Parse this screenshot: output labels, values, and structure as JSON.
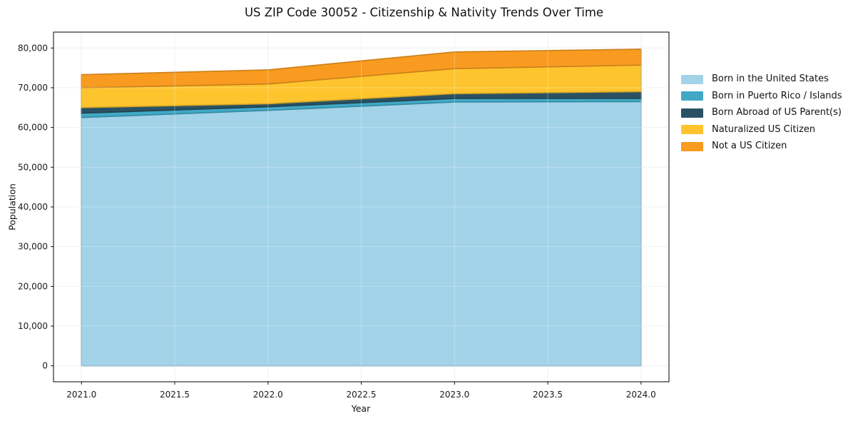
{
  "chart_data": {
    "type": "area",
    "stacked": true,
    "title": "US ZIP Code 30052 - Citizenship & Nativity Trends Over Time",
    "xlabel": "Year",
    "ylabel": "Population",
    "x": [
      2021,
      2022,
      2023,
      2024
    ],
    "series": [
      {
        "name": "Born in the United States",
        "color": "#a2d3e9",
        "values": [
          62500,
          64300,
          66400,
          66500
        ]
      },
      {
        "name": "Born in Puerto Rico / Islands",
        "color": "#41a9c6",
        "values": [
          1100,
          900,
          900,
          800
        ]
      },
      {
        "name": "Born Abroad of US Parent(s)",
        "color": "#2a5264",
        "values": [
          1400,
          750,
          1200,
          1700
        ]
      },
      {
        "name": "Naturalized US Citizen",
        "color": "#fdc42e",
        "values": [
          5000,
          5000,
          6300,
          6700
        ]
      },
      {
        "name": "Not a US Citizen",
        "color": "#f89b20",
        "values": [
          3300,
          3550,
          4200,
          4000
        ]
      }
    ],
    "xticks": [
      2021.0,
      2021.5,
      2022.0,
      2022.5,
      2023.0,
      2023.5,
      2024.0
    ],
    "yticks": [
      0,
      10000,
      20000,
      30000,
      40000,
      50000,
      60000,
      70000,
      80000
    ],
    "xlim": [
      2020.85,
      2024.15
    ],
    "ylim": [
      -4000,
      84000
    ],
    "grid": true,
    "legend_position": "right"
  }
}
